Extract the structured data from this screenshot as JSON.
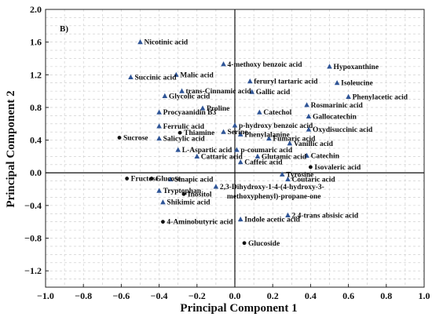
{
  "chart_data": {
    "type": "scatter",
    "panel_label": "B)",
    "xlabel": "Principal Component 1",
    "ylabel": "Principal Component 2",
    "xlim": [
      -1.0,
      1.0
    ],
    "ylim": [
      -1.4,
      2.0
    ],
    "x_ticks": [
      "−1.0",
      "−0.8",
      "−0.6",
      "−0.4",
      "−0.2",
      "0.0",
      "0.2",
      "0.4",
      "0.6",
      "0.8",
      "1.0"
    ],
    "y_ticks": [
      "2.0",
      "1.6",
      "1.2",
      "0.8",
      "0.4",
      "0.0",
      "−0.4",
      "−0.8",
      "−1.2"
    ],
    "grid": true,
    "marker_colors": {
      "triangle": "#2f5597",
      "circle": "#111111"
    },
    "points": [
      {
        "label": "Nicotinic acid",
        "x": -0.5,
        "y": 1.6,
        "marker": "triangle"
      },
      {
        "label": "4-methoxy benzoic acid",
        "x": -0.06,
        "y": 1.33,
        "marker": "triangle"
      },
      {
        "label": "Hypoxanthine",
        "x": 0.5,
        "y": 1.3,
        "marker": "triangle"
      },
      {
        "label": "Succinic acid",
        "x": -0.55,
        "y": 1.17,
        "marker": "triangle"
      },
      {
        "label": "Malic acid",
        "x": -0.31,
        "y": 1.2,
        "marker": "triangle"
      },
      {
        "label": "feruryl tartaric acid",
        "x": 0.08,
        "y": 1.12,
        "marker": "triangle"
      },
      {
        "label": "Isoleucine",
        "x": 0.54,
        "y": 1.1,
        "marker": "triangle"
      },
      {
        "label": "trans-Cinnamic acid",
        "x": -0.28,
        "y": 1.0,
        "marker": "triangle"
      },
      {
        "label": "Gallic acid",
        "x": 0.09,
        "y": 0.99,
        "marker": "triangle"
      },
      {
        "label": "Glycolic acid",
        "x": -0.37,
        "y": 0.94,
        "marker": "triangle"
      },
      {
        "label": "Phenylacetic acid",
        "x": 0.6,
        "y": 0.93,
        "marker": "triangle"
      },
      {
        "label": "Rosmarinic acid",
        "x": 0.38,
        "y": 0.83,
        "marker": "triangle"
      },
      {
        "label": "Proline",
        "x": -0.17,
        "y": 0.79,
        "marker": "triangle"
      },
      {
        "label": "Catechol",
        "x": 0.13,
        "y": 0.74,
        "marker": "triangle"
      },
      {
        "label": "Procyaanidin B3",
        "x": -0.4,
        "y": 0.74,
        "marker": "triangle"
      },
      {
        "label": "Gallocatechin",
        "x": 0.39,
        "y": 0.69,
        "marker": "triangle"
      },
      {
        "label": "Ferrulic acid",
        "x": -0.4,
        "y": 0.57,
        "marker": "triangle"
      },
      {
        "label": "p-hydroxy benzoic acid",
        "x": 0.0,
        "y": 0.58,
        "marker": "triangle"
      },
      {
        "label": "Oxydisuccinic acid",
        "x": 0.39,
        "y": 0.53,
        "marker": "triangle"
      },
      {
        "label": "Thiamine",
        "x": -0.29,
        "y": 0.49,
        "marker": "circle"
      },
      {
        "label": "Serine",
        "x": -0.06,
        "y": 0.5,
        "marker": "triangle"
      },
      {
        "label": "Phenylalanine",
        "x": 0.03,
        "y": 0.47,
        "marker": "triangle"
      },
      {
        "label": "Sucrose",
        "x": -0.61,
        "y": 0.43,
        "marker": "circle"
      },
      {
        "label": "Fumaric acid",
        "x": 0.18,
        "y": 0.42,
        "marker": "triangle"
      },
      {
        "label": "Salicylic acid",
        "x": -0.4,
        "y": 0.42,
        "marker": "triangle"
      },
      {
        "label": "Vanillic acid",
        "x": 0.29,
        "y": 0.36,
        "marker": "triangle"
      },
      {
        "label": "L-Aspartic acid",
        "x": -0.3,
        "y": 0.28,
        "marker": "triangle"
      },
      {
        "label": "p-coumaric acid",
        "x": 0.01,
        "y": 0.28,
        "marker": "triangle"
      },
      {
        "label": "Catechin",
        "x": 0.38,
        "y": 0.21,
        "marker": "triangle"
      },
      {
        "label": "Cattaric acid",
        "x": -0.2,
        "y": 0.2,
        "marker": "triangle"
      },
      {
        "label": "Glutamic acid",
        "x": 0.12,
        "y": 0.2,
        "marker": "triangle"
      },
      {
        "label": "Caffeic acid",
        "x": 0.03,
        "y": 0.13,
        "marker": "triangle"
      },
      {
        "label": "Isovaleric acid",
        "x": 0.4,
        "y": 0.07,
        "marker": "circle"
      },
      {
        "label": "Tyrosine",
        "x": 0.25,
        "y": -0.02,
        "marker": "triangle"
      },
      {
        "label": "Fructose",
        "x": -0.57,
        "y": -0.07,
        "marker": "circle"
      },
      {
        "label": "Glucose",
        "x": -0.44,
        "y": -0.07,
        "marker": "circle"
      },
      {
        "label": "Sinapic acid",
        "x": -0.34,
        "y": -0.08,
        "marker": "triangle"
      },
      {
        "label": "Coutaric acid",
        "x": 0.28,
        "y": -0.08,
        "marker": "triangle"
      },
      {
        "label": "2,3-Dihydroxy-1-4-(4-hydroxy-3-methoxyphenyl)-propane-one",
        "x": -0.1,
        "y": -0.17,
        "marker": "triangle"
      },
      {
        "label": "Tryptophan",
        "x": -0.4,
        "y": -0.22,
        "marker": "triangle"
      },
      {
        "label": "Inositol",
        "x": -0.27,
        "y": -0.26,
        "marker": "circle"
      },
      {
        "label": "Shikimic acid",
        "x": -0.38,
        "y": -0.36,
        "marker": "triangle"
      },
      {
        "label": "2,4-trans absisic acid",
        "x": 0.28,
        "y": -0.52,
        "marker": "triangle"
      },
      {
        "label": "Indole acetic acid",
        "x": 0.03,
        "y": -0.57,
        "marker": "triangle"
      },
      {
        "label": "4-Aminobutyric acid",
        "x": -0.38,
        "y": -0.6,
        "marker": "circle"
      },
      {
        "label": "Glucoside",
        "x": 0.05,
        "y": -0.86,
        "marker": "circle"
      }
    ]
  }
}
